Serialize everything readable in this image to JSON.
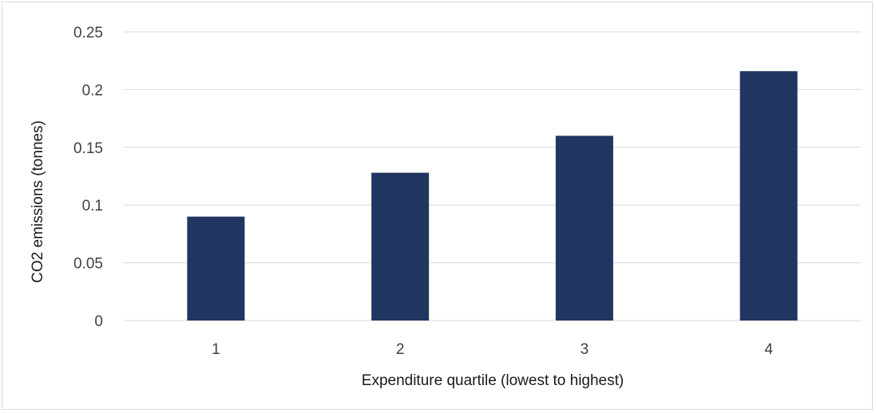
{
  "chart_data": {
    "type": "bar",
    "title": "",
    "xlabel": "Expenditure quartile (lowest to highest)",
    "ylabel": "CO2 emissions (tonnes)",
    "categories": [
      "1",
      "2",
      "3",
      "4"
    ],
    "values": [
      0.09,
      0.128,
      0.16,
      0.216
    ],
    "ylim": [
      0,
      0.25
    ],
    "yticks": [
      "0",
      "0.05",
      "0.1",
      "0.15",
      "0.2",
      "0.25"
    ],
    "grid": true,
    "bar_color": "#203560",
    "grid_color": "#d9d9d9"
  }
}
